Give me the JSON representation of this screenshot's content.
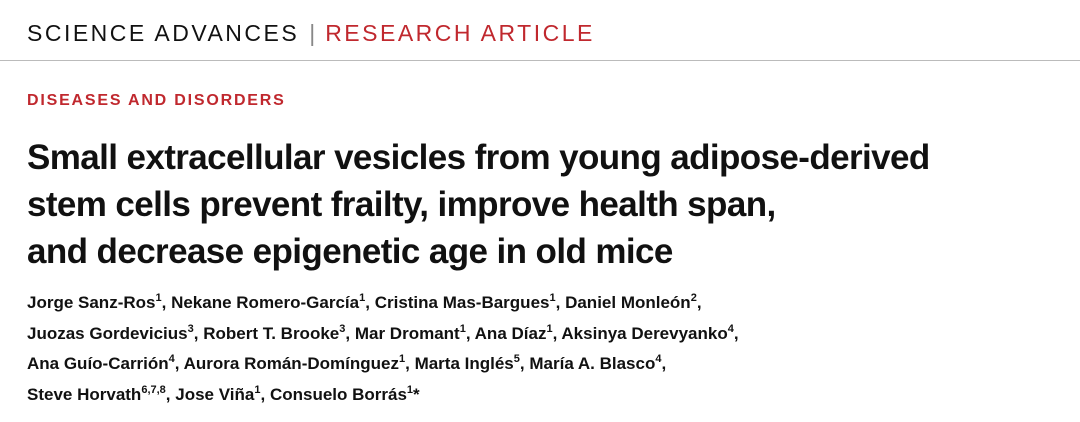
{
  "header": {
    "journal": "SCIENCE ADVANCES",
    "separator": "|",
    "section": "RESEARCH ARTICLE"
  },
  "category": "DISEASES AND DISORDERS",
  "title_lines": [
    "Small extracellular vesicles from young adipose-derived",
    "stem cells prevent frailty, improve health span,",
    "and decrease epigenetic age in old mice"
  ],
  "author_lines": [
    [
      {
        "name": "Jorge Sanz-Ros",
        "sup": "1",
        "sep": ","
      },
      {
        "name": "Nekane Romero-García",
        "sup": "1",
        "sep": ","
      },
      {
        "name": "Cristina Mas-Bargues",
        "sup": "1",
        "sep": ","
      },
      {
        "name": "Daniel Monleón",
        "sup": "2",
        "sep": ","
      }
    ],
    [
      {
        "name": "Juozas Gordevicius",
        "sup": "3",
        "sep": ","
      },
      {
        "name": "Robert T. Brooke",
        "sup": "3",
        "sep": ","
      },
      {
        "name": "Mar Dromant",
        "sup": "1",
        "sep": ","
      },
      {
        "name": "Ana Díaz",
        "sup": "1",
        "sep": ","
      },
      {
        "name": "Aksinya Derevyanko",
        "sup": "4",
        "sep": ","
      }
    ],
    [
      {
        "name": "Ana Guío-Carrión",
        "sup": "4",
        "sep": ","
      },
      {
        "name": "Aurora Román-Domínguez",
        "sup": "1",
        "sep": ","
      },
      {
        "name": "Marta Inglés",
        "sup": "5",
        "sep": ","
      },
      {
        "name": "María A. Blasco",
        "sup": "4",
        "sep": ","
      }
    ],
    [
      {
        "name": "Steve Horvath",
        "sup": "6,7,8",
        "sep": ","
      },
      {
        "name": "Jose Viña",
        "sup": "1",
        "sep": ","
      },
      {
        "name": "Consuelo Borrás",
        "sup": "1",
        "sep": "*"
      }
    ]
  ]
}
